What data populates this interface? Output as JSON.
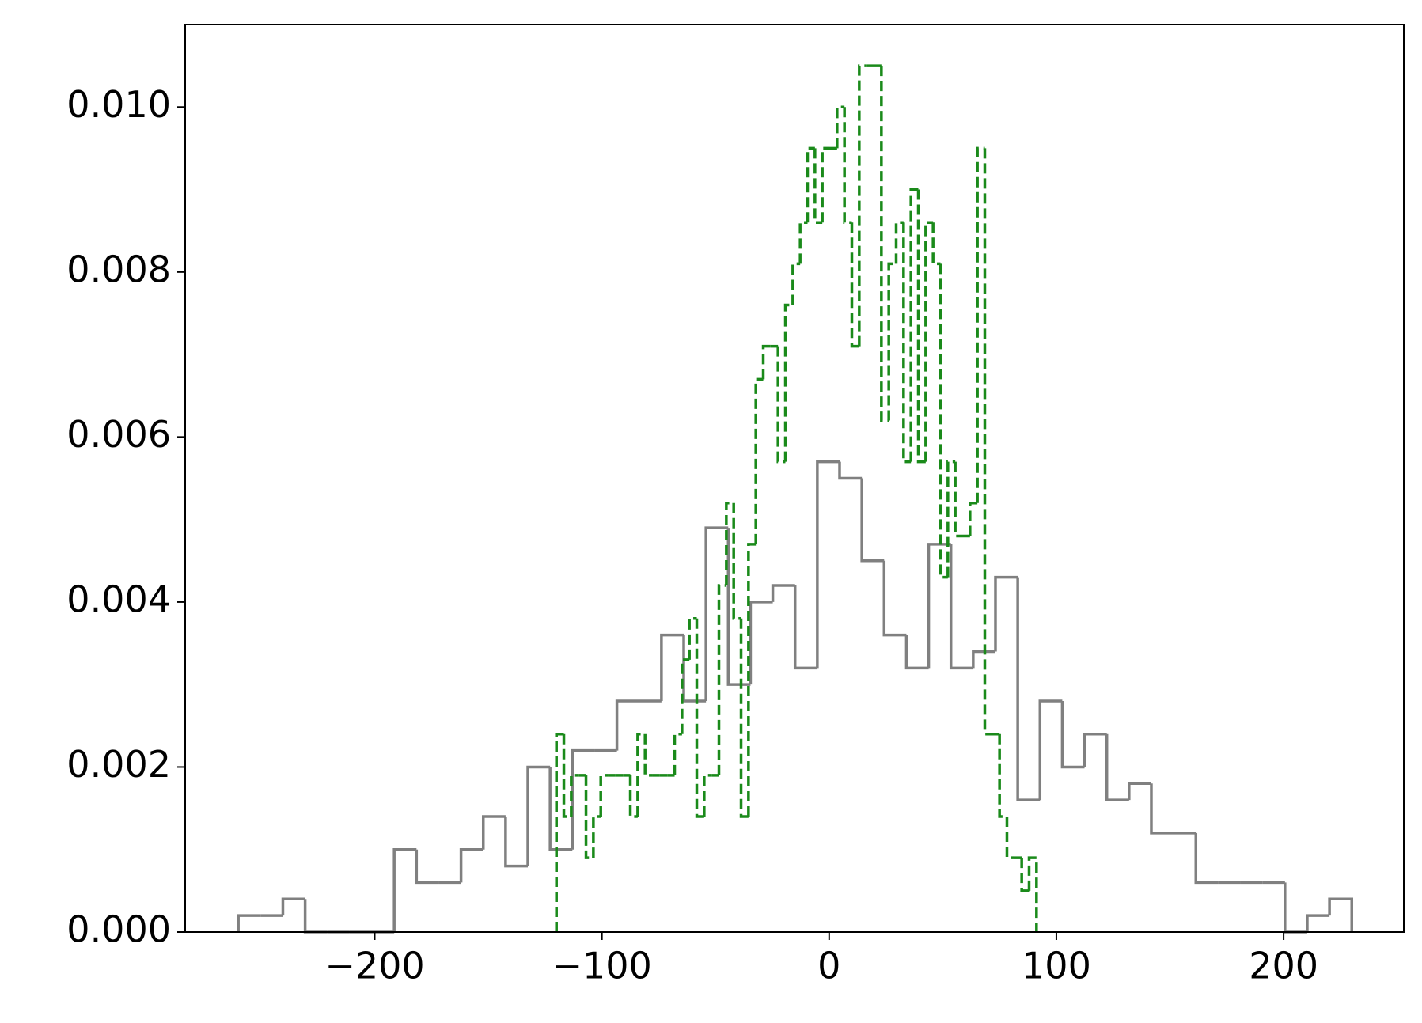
{
  "chart_data": {
    "type": "histogram",
    "xlim": [
      -283.4,
      252.9
    ],
    "ylim": [
      0,
      0.011
    ],
    "xticks": [
      {
        "value": -200,
        "label": "−200"
      },
      {
        "value": -100,
        "label": "−100"
      },
      0,
      100,
      200
    ],
    "yticks": [
      {
        "value": 0,
        "label": "0.000"
      },
      {
        "value": 0.002,
        "label": "0.002"
      },
      {
        "value": 0.004,
        "label": "0.004"
      },
      {
        "value": 0.006,
        "label": "0.006"
      },
      {
        "value": 0.008,
        "label": "0.008"
      },
      {
        "value": 0.01,
        "label": "0.010"
      }
    ],
    "grid": false,
    "series": [
      {
        "color": "#808080",
        "linestyle": "solid",
        "bins": [
          -260,
          -250.2,
          -240.4,
          -230.6,
          -220.8,
          -211,
          -201.2,
          -191.4,
          -181.6,
          -171.8,
          -162,
          -152.2,
          -142.4,
          -132.6,
          -122.8,
          -113,
          -103.2,
          -93.4,
          -83.6,
          -73.8,
          -64,
          -54.2,
          -44.4,
          -34.6,
          -24.8,
          -15,
          -5.2,
          4.6,
          14.4,
          24.2,
          34,
          43.8,
          53.6,
          63.4,
          73.2,
          83,
          92.8,
          102.6,
          112.4,
          122.2,
          132,
          141.8,
          151.6,
          161.4,
          171.2,
          181,
          190.8,
          200.6,
          210.4,
          220.2,
          230
        ],
        "values": [
          0.0002,
          0.0002,
          0.0004,
          0,
          0,
          0,
          0,
          0.001,
          0.0006,
          0.0006,
          0.001,
          0.0014,
          0.0008,
          0.002,
          0.001,
          0.0022,
          0.0022,
          0.0028,
          0.0028,
          0.0036,
          0.0028,
          0.0049,
          0.003,
          0.004,
          0.0042,
          0.0032,
          0.0057,
          0.0055,
          0.0045,
          0.0036,
          0.0032,
          0.0047,
          0.0032,
          0.0034,
          0.0043,
          0.0016,
          0.0028,
          0.002,
          0.0024,
          0.0016,
          0.0018,
          0.0012,
          0.0012,
          0.0006,
          0.0006,
          0.0006,
          0.0006,
          0,
          0.0002,
          0.0004
        ]
      },
      {
        "color": "#1a8a1a",
        "linestyle": "dashed",
        "bins": [
          -120,
          -116.75,
          -113.5,
          -110.25,
          -107,
          -103.75,
          -100.5,
          -97.25,
          -94,
          -90.75,
          -87.5,
          -84.25,
          -81,
          -77.75,
          -74.5,
          -71.25,
          -68,
          -64.75,
          -61.5,
          -58.25,
          -55,
          -51.75,
          -48.5,
          -45.25,
          -42,
          -38.75,
          -35.5,
          -32.25,
          -29,
          -25.75,
          -22.5,
          -19.25,
          -16,
          -12.75,
          -9.5,
          -6.25,
          -3,
          0.25,
          3.5,
          6.75,
          10,
          13.25,
          16.5,
          19.75,
          23,
          26.25,
          29.5,
          32.75,
          36,
          39.25,
          42.5,
          45.75,
          49,
          52.25,
          55.5,
          58.75,
          62,
          65.25,
          68.5,
          71.75,
          75,
          78.25,
          81.5,
          84.75,
          88,
          91.25
        ],
        "values": [
          0.0024,
          0.0014,
          0.0019,
          0.0019,
          0.0009,
          0.0014,
          0.0019,
          0.0019,
          0.0019,
          0.0019,
          0.0014,
          0.0024,
          0.0019,
          0.0019,
          0.0019,
          0.0019,
          0.0024,
          0.0033,
          0.0038,
          0.0014,
          0.0019,
          0.0019,
          0.0042,
          0.0052,
          0.0038,
          0.0014,
          0.0047,
          0.0067,
          0.0071,
          0.0071,
          0.0057,
          0.0076,
          0.0081,
          0.0086,
          0.0095,
          0.0086,
          0.0095,
          0.0095,
          0.01,
          0.0086,
          0.0071,
          0.0105,
          0.0105,
          0.0105,
          0.0062,
          0.0081,
          0.0086,
          0.0057,
          0.009,
          0.0057,
          0.0086,
          0.0081,
          0.0043,
          0.0057,
          0.0048,
          0.0048,
          0.0052,
          0.0095,
          0.0024,
          0.0024,
          0.0014,
          0.0009,
          0.0009,
          0.0005,
          0.0009
        ]
      }
    ]
  }
}
